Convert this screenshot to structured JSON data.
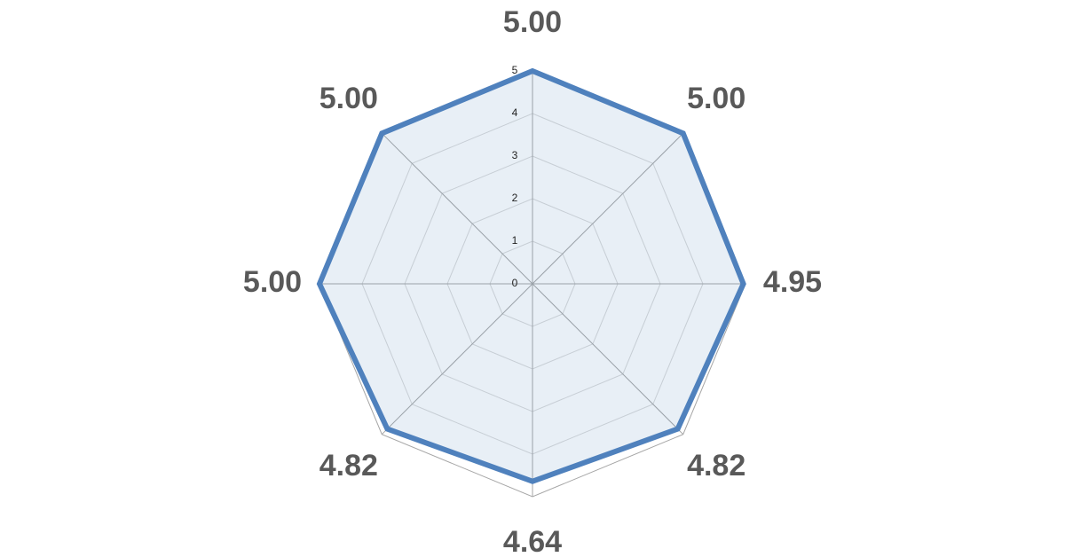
{
  "chart_data": {
    "type": "radar",
    "values": [
      5,
      5,
      4.95,
      4.82,
      4.64,
      4.82,
      5,
      5
    ],
    "value_labels": [
      "5.00",
      "5.00",
      "4.95",
      "4.82",
      "4.64",
      "4.82",
      "5.00",
      "5.00"
    ],
    "color": "#4f81bd",
    "ylim": [
      0,
      5
    ],
    "yticks": [
      0,
      1,
      2,
      3,
      4,
      5
    ],
    "grid": true
  }
}
